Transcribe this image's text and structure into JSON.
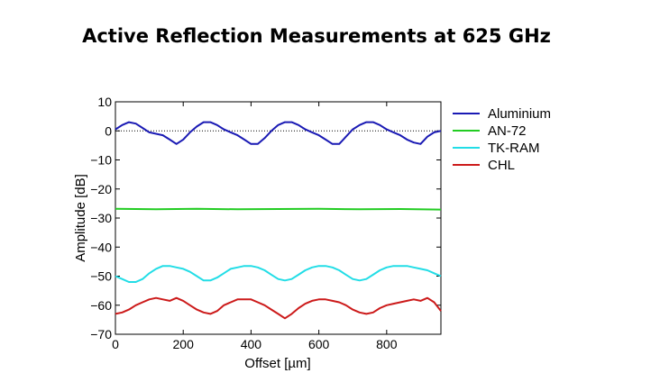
{
  "chart_data": {
    "type": "line",
    "title": "Active Reflection Measurements at 625 GHz",
    "xlabel": "Offset [µm]",
    "ylabel": "Amplitude [dB]",
    "xlim": [
      0,
      960
    ],
    "ylim": [
      -70,
      10
    ],
    "x_ticks": [
      0,
      200,
      400,
      600,
      800
    ],
    "x_tick_labels": [
      "0",
      "200",
      "400",
      "600",
      "800"
    ],
    "y_ticks": [
      10,
      0,
      -10,
      -20,
      -30,
      -40,
      -50,
      -60,
      -70
    ],
    "y_tick_labels": [
      "10",
      "0",
      "−10",
      "−20",
      "−30",
      "−40",
      "−50",
      "−60",
      "−70"
    ],
    "grid": false,
    "reference_line": {
      "y": 0,
      "style": "dotted"
    },
    "legend_position": "outside-right",
    "series": [
      {
        "name": "Aluminium",
        "color": "#1a1ab4",
        "x": [
          0,
          20,
          40,
          60,
          80,
          100,
          120,
          140,
          160,
          180,
          200,
          220,
          240,
          260,
          280,
          300,
          320,
          340,
          360,
          380,
          400,
          420,
          440,
          460,
          480,
          500,
          520,
          540,
          560,
          580,
          600,
          620,
          640,
          660,
          680,
          700,
          720,
          740,
          760,
          780,
          800,
          820,
          840,
          860,
          880,
          900,
          920,
          940,
          960
        ],
        "values": [
          0.5,
          2,
          3,
          2.5,
          1,
          -0.5,
          -1,
          -1.5,
          -3,
          -4.5,
          -3,
          -0.5,
          1.5,
          3,
          3,
          2,
          0.5,
          -0.5,
          -1.5,
          -3,
          -4.5,
          -4.5,
          -2.5,
          0,
          2,
          3,
          3,
          2,
          0.5,
          -0.5,
          -1.5,
          -3,
          -4.5,
          -4.5,
          -2,
          0.5,
          2,
          3,
          3,
          2,
          0.5,
          -0.5,
          -1.5,
          -3,
          -4,
          -4.5,
          -2,
          -0.5,
          0
        ]
      },
      {
        "name": "AN-72",
        "color": "#22cc22",
        "x": [
          0,
          120,
          240,
          360,
          480,
          600,
          720,
          840,
          960
        ],
        "values": [
          -26.8,
          -27.0,
          -26.8,
          -27.0,
          -26.9,
          -26.8,
          -27.0,
          -26.9,
          -27.1
        ]
      },
      {
        "name": "TK-RAM",
        "color": "#22dde6",
        "x": [
          0,
          20,
          40,
          60,
          80,
          100,
          120,
          140,
          160,
          180,
          200,
          220,
          240,
          260,
          280,
          300,
          320,
          340,
          360,
          380,
          400,
          420,
          440,
          460,
          480,
          500,
          520,
          540,
          560,
          580,
          600,
          620,
          640,
          660,
          680,
          700,
          720,
          740,
          760,
          780,
          800,
          820,
          840,
          860,
          880,
          900,
          920,
          940,
          960
        ],
        "values": [
          -50,
          -51,
          -52,
          -52,
          -51,
          -49,
          -47.5,
          -46.5,
          -46.5,
          -47,
          -47.5,
          -48.5,
          -50,
          -51.5,
          -51.5,
          -50.5,
          -49,
          -47.5,
          -47,
          -46.5,
          -46.5,
          -47,
          -48,
          -49.5,
          -51,
          -51.5,
          -51,
          -49.5,
          -48,
          -47,
          -46.5,
          -46.5,
          -47,
          -48,
          -49.5,
          -51,
          -51.5,
          -51,
          -49.5,
          -48,
          -47,
          -46.5,
          -46.5,
          -46.5,
          -47,
          -47.5,
          -48,
          -49,
          -50
        ]
      },
      {
        "name": "CHL",
        "color": "#cc1a1a",
        "x": [
          0,
          20,
          40,
          60,
          80,
          100,
          120,
          140,
          160,
          180,
          200,
          220,
          240,
          260,
          280,
          300,
          320,
          340,
          360,
          380,
          400,
          420,
          440,
          460,
          480,
          500,
          520,
          540,
          560,
          580,
          600,
          620,
          640,
          660,
          680,
          700,
          720,
          740,
          760,
          780,
          800,
          820,
          840,
          860,
          880,
          900,
          920,
          940,
          960
        ],
        "values": [
          -63,
          -62.5,
          -61.5,
          -60,
          -59,
          -58,
          -57.5,
          -58,
          -58.5,
          -57.5,
          -58.5,
          -60,
          -61.5,
          -62.5,
          -63,
          -62,
          -60,
          -59,
          -58,
          -58,
          -58,
          -59,
          -60,
          -61.5,
          -63,
          -64.5,
          -63,
          -61,
          -59.5,
          -58.5,
          -58,
          -58,
          -58.5,
          -59,
          -60,
          -61.5,
          -62.5,
          -63,
          -62.5,
          -61,
          -60,
          -59.5,
          -59,
          -58.5,
          -58,
          -58.5,
          -57.5,
          -59,
          -62
        ]
      }
    ]
  }
}
